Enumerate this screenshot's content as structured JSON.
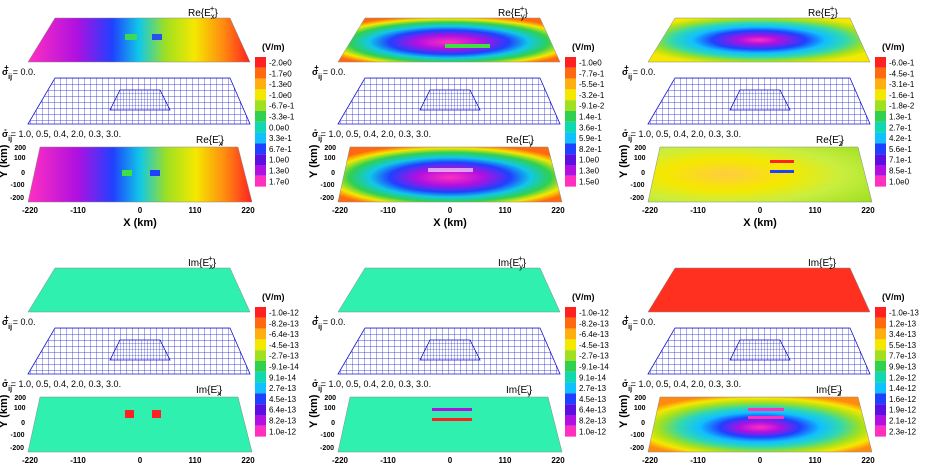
{
  "figure": {
    "units": "(V/m)",
    "sigma_plus": "0.0.",
    "sigma_minus": "1.0, 0.5, 0.4, 2.0, 0.3, 3.0.",
    "x_ticks": [
      "-220",
      "-110",
      "0",
      "110",
      "220"
    ],
    "y_ticks": [
      "200",
      "100",
      "0",
      "-100",
      "-200"
    ],
    "x_axis_label": "X  (km)",
    "y_axis_label": "Y  (km)",
    "panels": [
      {
        "name": "re-ex",
        "top_title": "Re{E",
        "comp": "x",
        "bottom_title": "Re{E",
        "colors": [
          "#ff2020",
          "#ff6a10",
          "#ffb010",
          "#f5e800",
          "#9fe020",
          "#30d050",
          "#10d8b0",
          "#10c0ff",
          "#2040ff",
          "#5a10e0",
          "#b010e0",
          "#ff30c0"
        ],
        "labels": [
          "-2.0e0",
          "-1.7e0",
          "-1.3e0",
          "-1.0e0",
          "-6.7e-1",
          "-3.3e-1",
          "0.0e0",
          "3.3e-1",
          "6.7e-1",
          "1.0e0",
          "1.3e0",
          "1.7e0"
        ]
      },
      {
        "name": "re-ey",
        "top_title": "Re{E",
        "comp": "y",
        "bottom_title": "Re{E",
        "colors": [
          "#ff2020",
          "#ff6a10",
          "#ffb010",
          "#f5e800",
          "#9fe020",
          "#30d050",
          "#10d8b0",
          "#10c0ff",
          "#2040ff",
          "#5a10e0",
          "#b010e0",
          "#ff30c0"
        ],
        "labels": [
          "-1.0e0",
          "-7.7e-1",
          "-5.5e-1",
          "-3.2e-1",
          "-9.1e-2",
          "1.4e-1",
          "3.6e-1",
          "5.9e-1",
          "8.2e-1",
          "1.0e0",
          "1.3e0",
          "1.5e0"
        ]
      },
      {
        "name": "re-ez",
        "top_title": "Re{E",
        "comp": "z",
        "bottom_title": "Re{E",
        "colors": [
          "#ff2020",
          "#ff6a10",
          "#ffb010",
          "#f5e800",
          "#9fe020",
          "#30d050",
          "#10d8b0",
          "#10c0ff",
          "#2040ff",
          "#5a10e0",
          "#b010e0",
          "#ff30c0"
        ],
        "labels": [
          "-6.0e-1",
          "-4.5e-1",
          "-3.1e-1",
          "-1.6e-1",
          "-1.8e-2",
          "1.3e-1",
          "2.7e-1",
          "4.2e-1",
          "5.6e-1",
          "7.1e-1",
          "8.5e-1",
          "1.0e0"
        ]
      },
      {
        "name": "im-ex",
        "top_title": "Im{E",
        "comp": "x",
        "bottom_title": "Im{E",
        "colors": [
          "#ff2020",
          "#ff6a10",
          "#ffb010",
          "#f5e800",
          "#9fe020",
          "#30d050",
          "#10d8b0",
          "#10c0ff",
          "#2040ff",
          "#5a10e0",
          "#b010e0",
          "#ff30c0"
        ],
        "labels": [
          "-1.0e-12",
          "-8.2e-13",
          "-6.4e-13",
          "-4.5e-13",
          "-2.7e-13",
          "-9.1e-14",
          "9.1e-14",
          "2.7e-13",
          "4.5e-13",
          "6.4e-13",
          "8.2e-13",
          "1.0e-12"
        ]
      },
      {
        "name": "im-ey",
        "top_title": "Im{E",
        "comp": "y",
        "bottom_title": "Im{E",
        "colors": [
          "#ff2020",
          "#ff6a10",
          "#ffb010",
          "#f5e800",
          "#9fe020",
          "#30d050",
          "#10d8b0",
          "#10c0ff",
          "#2040ff",
          "#5a10e0",
          "#b010e0",
          "#ff30c0"
        ],
        "labels": [
          "-1.0e-12",
          "-8.2e-13",
          "-6.4e-13",
          "-4.5e-13",
          "-2.7e-13",
          "-9.1e-14",
          "9.1e-14",
          "2.7e-13",
          "4.5e-13",
          "6.4e-13",
          "8.2e-13",
          "1.0e-12"
        ]
      },
      {
        "name": "im-ez",
        "top_title": "Im{E",
        "comp": "z",
        "bottom_title": "Im{E",
        "colors": [
          "#ff2020",
          "#ff6a10",
          "#ffb010",
          "#f5e800",
          "#9fe020",
          "#30d050",
          "#10d8b0",
          "#10c0ff",
          "#2040ff",
          "#5a10e0",
          "#b010e0",
          "#ff30c0"
        ],
        "labels": [
          "-1.0e-13",
          "1.2e-13",
          "3.4e-13",
          "5.5e-13",
          "7.7e-13",
          "9.9e-13",
          "1.2e-12",
          "1.4e-12",
          "1.6e-12",
          "1.9e-12",
          "2.1e-12",
          "2.3e-12"
        ]
      }
    ]
  }
}
